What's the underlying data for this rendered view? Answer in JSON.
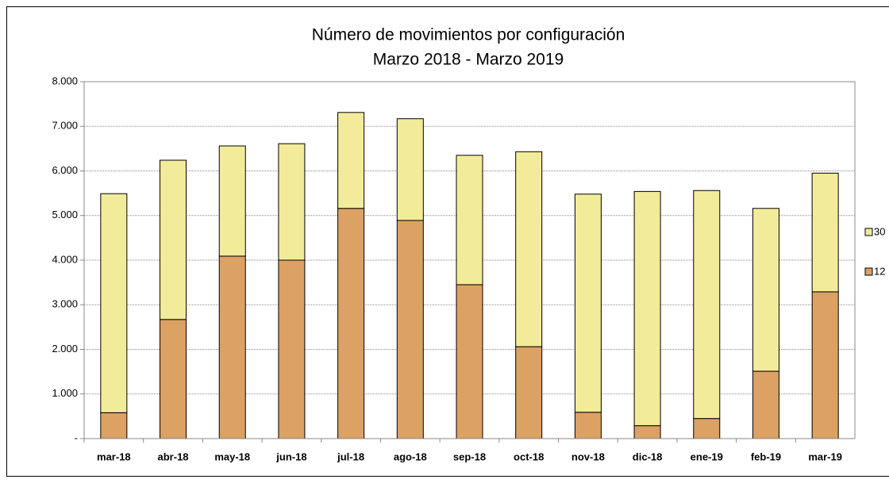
{
  "chart_data": {
    "type": "stacked-bar",
    "title": "Número de movimientos por configuración",
    "subtitle": "Marzo 2018 - Marzo 2019",
    "categories": [
      "mar-18",
      "abr-18",
      "may-18",
      "jun-18",
      "jul-18",
      "ago-18",
      "sep-18",
      "oct-18",
      "nov-18",
      "dic-18",
      "ene-19",
      "feb-19",
      "mar-19"
    ],
    "series": [
      {
        "name": "12",
        "color": "#dba264",
        "values": [
          580,
          2670,
          4090,
          4000,
          5160,
          4890,
          3450,
          2060,
          590,
          290,
          450,
          1510,
          3290
        ]
      },
      {
        "name": "30",
        "color": "#f2ec9a",
        "values": [
          4910,
          3570,
          2470,
          2610,
          2150,
          2280,
          2900,
          4370,
          4890,
          5250,
          5110,
          3650,
          2660
        ]
      }
    ],
    "ylim": [
      0,
      8000
    ],
    "yticks": [
      {
        "value": 0,
        "label": "-"
      },
      {
        "value": 1000,
        "label": "1.000"
      },
      {
        "value": 2000,
        "label": "2.000"
      },
      {
        "value": 3000,
        "label": "3.000"
      },
      {
        "value": 4000,
        "label": "4.000"
      },
      {
        "value": 5000,
        "label": "5.000"
      },
      {
        "value": 6000,
        "label": "6.000"
      },
      {
        "value": 7000,
        "label": "7.000"
      },
      {
        "value": 8000,
        "label": "8.000"
      }
    ],
    "grid": true
  }
}
